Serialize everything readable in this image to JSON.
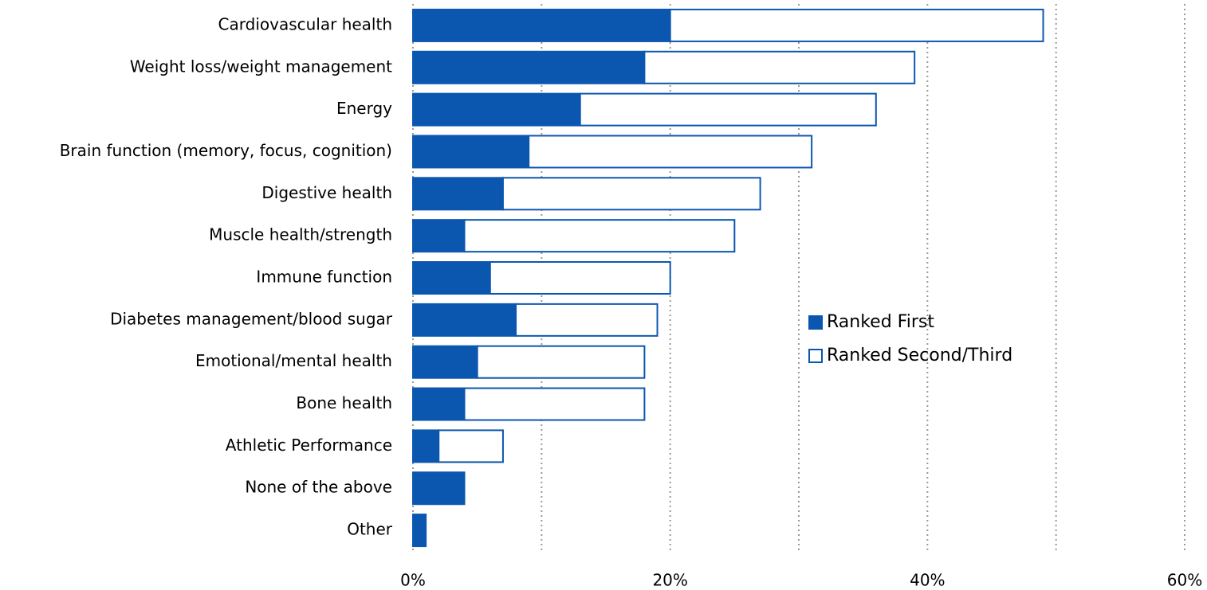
{
  "chart_data": {
    "type": "stacked_barh",
    "categories": [
      "Cardiovascular health",
      "Weight loss/weight management",
      "Energy",
      "Brain function (memory, focus, cognition)",
      "Digestive health",
      "Muscle health/strength",
      "Immune function",
      "Diabetes management/blood sugar",
      "Emotional/mental health",
      "Bone health",
      "Athletic Performance",
      "None of the above",
      "Other"
    ],
    "series": [
      {
        "name": "Ranked First",
        "color": "#0b57b0",
        "values": [
          20,
          18,
          13,
          9,
          7,
          4,
          6,
          8,
          5,
          4,
          2,
          4,
          1
        ]
      },
      {
        "name": "Ranked Second/Third",
        "color": "#ffffff",
        "values": [
          29,
          21,
          23,
          22,
          20,
          21,
          14,
          11,
          13,
          14,
          5,
          0,
          0
        ]
      }
    ],
    "xlim": [
      0,
      60
    ],
    "xticks": [
      {
        "value": 0,
        "label": "0%"
      },
      {
        "value": 20,
        "label": "20%"
      },
      {
        "value": 40,
        "label": "40%"
      },
      {
        "value": 60,
        "label": "60%"
      }
    ],
    "gridlines": [
      0,
      10,
      20,
      30,
      40,
      50,
      60
    ],
    "grid": true,
    "legend": "right"
  }
}
